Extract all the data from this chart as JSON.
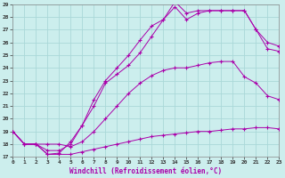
{
  "xlabel": "Windchill (Refroidissement éolien,°C)",
  "background_color": "#cceeed",
  "grid_color": "#aad8d8",
  "line_color": "#aa00aa",
  "xlim": [
    0,
    23
  ],
  "ylim": [
    17,
    29
  ],
  "xticks": [
    0,
    1,
    2,
    3,
    4,
    5,
    6,
    7,
    8,
    9,
    10,
    11,
    12,
    13,
    14,
    15,
    16,
    17,
    18,
    19,
    20,
    21,
    22,
    23
  ],
  "yticks": [
    17,
    18,
    19,
    20,
    21,
    22,
    23,
    24,
    25,
    26,
    27,
    28,
    29
  ],
  "series1_x": [
    0,
    1,
    2,
    3,
    4,
    5,
    6,
    7,
    8,
    9,
    10,
    11,
    12,
    13,
    14,
    15,
    16,
    17,
    18,
    19,
    20,
    21,
    22,
    23
  ],
  "series1_y": [
    19.0,
    18.0,
    18.0,
    17.2,
    17.2,
    17.2,
    17.4,
    17.6,
    17.8,
    18.0,
    18.2,
    18.4,
    18.6,
    18.7,
    18.8,
    18.9,
    19.0,
    19.0,
    19.1,
    19.2,
    19.2,
    19.3,
    19.3,
    19.2
  ],
  "series2_x": [
    0,
    1,
    2,
    3,
    4,
    5,
    6,
    7,
    8,
    9,
    10,
    11,
    12,
    13,
    14,
    15,
    16,
    17,
    18,
    19,
    20,
    21,
    22,
    23
  ],
  "series2_y": [
    19.0,
    18.0,
    18.0,
    18.0,
    18.0,
    17.8,
    18.2,
    19.0,
    20.0,
    21.0,
    22.0,
    22.8,
    23.4,
    23.8,
    24.0,
    24.0,
    24.2,
    24.4,
    24.5,
    24.5,
    23.3,
    22.8,
    21.8,
    21.5
  ],
  "series3_x": [
    0,
    1,
    2,
    3,
    4,
    5,
    6,
    7,
    8,
    9,
    10,
    11,
    12,
    13,
    14,
    15,
    16,
    17,
    18,
    19,
    20,
    21,
    22,
    23
  ],
  "series3_y": [
    19.0,
    18.0,
    18.0,
    17.2,
    17.3,
    18.2,
    19.5,
    21.0,
    22.8,
    23.5,
    24.2,
    25.2,
    26.5,
    27.8,
    28.8,
    27.8,
    28.3,
    28.5,
    28.5,
    28.5,
    28.5,
    27.0,
    26.0,
    25.7
  ],
  "series4_x": [
    0,
    1,
    2,
    3,
    4,
    5,
    6,
    7,
    8,
    9,
    10,
    11,
    12,
    13,
    14,
    15,
    16,
    17,
    18,
    19,
    20,
    21,
    22,
    23
  ],
  "series4_y": [
    19.0,
    18.0,
    18.0,
    17.5,
    17.5,
    18.0,
    19.5,
    21.5,
    23.0,
    24.0,
    25.0,
    26.2,
    27.3,
    27.8,
    29.2,
    28.3,
    28.5,
    28.5,
    28.5,
    28.5,
    28.5,
    27.0,
    25.5,
    25.3
  ]
}
